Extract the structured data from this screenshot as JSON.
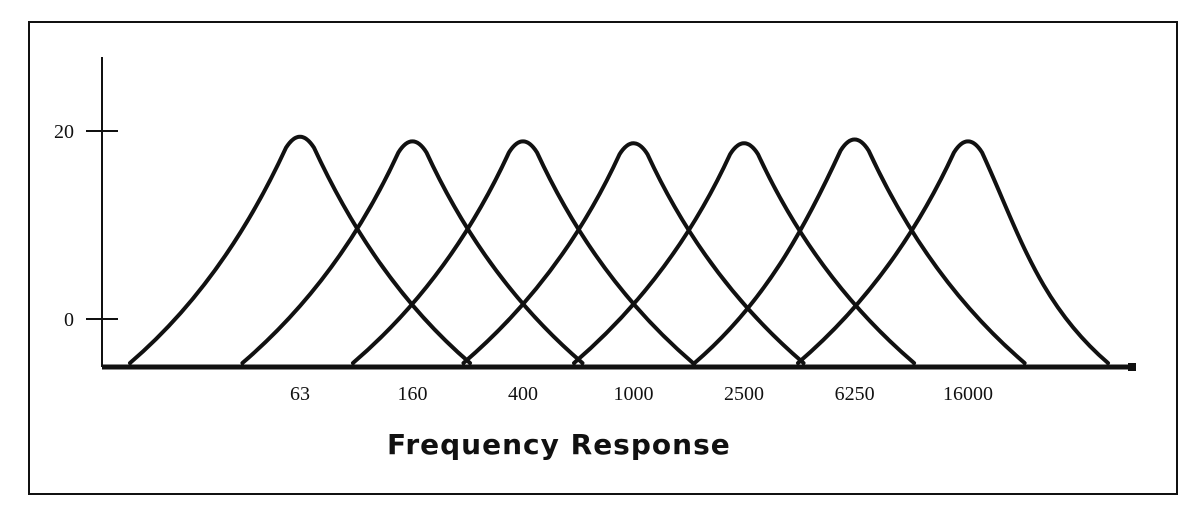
{
  "chart_data": {
    "type": "line",
    "title": "",
    "xlabel": "Frequency Response",
    "ylabel": "",
    "x_scale": "log",
    "categories": [
      "63",
      "160",
      "400",
      "1000",
      "2500",
      "6250",
      "16000"
    ],
    "center_frequencies": [
      63,
      160,
      400,
      1000,
      2500,
      6250,
      16000
    ],
    "y_ticks": [
      "20",
      "0"
    ],
    "y_tick_values": [
      20,
      0
    ],
    "ylim": [
      -5,
      28
    ],
    "peak_gain": 19.5,
    "grid": false,
    "legend": "none",
    "series": [
      {
        "center": 63,
        "peak": 19.5
      },
      {
        "center": 160,
        "peak": 19.0
      },
      {
        "center": 400,
        "peak": 19.0
      },
      {
        "center": 1000,
        "peak": 18.8
      },
      {
        "center": 2500,
        "peak": 18.8
      },
      {
        "center": 6250,
        "peak": 19.2
      },
      {
        "center": 16000,
        "peak": 19.0
      }
    ]
  },
  "colors": {
    "line": "#111111",
    "background": "#ffffff"
  }
}
